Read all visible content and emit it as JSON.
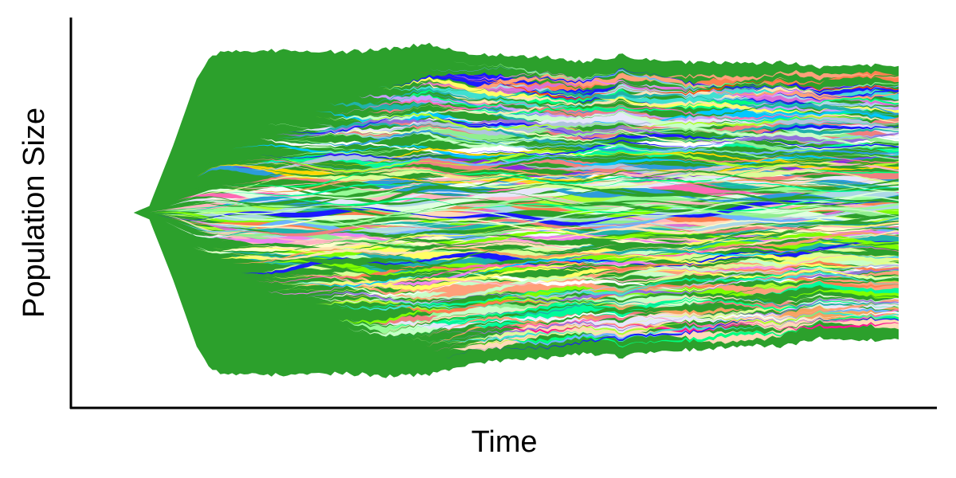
{
  "chart_data": {
    "type": "area",
    "subtype": "streamgraph (muller plot of lineage population sizes)",
    "title": "",
    "xlabel": "Time",
    "ylabel": "Population Size",
    "xlim": [
      0,
      100
    ],
    "ylim": [
      -1,
      1
    ],
    "grid": false,
    "legend": "none",
    "ticks": "none",
    "population_envelope": {
      "x": [
        0,
        3,
        5,
        8,
        11,
        13,
        15,
        20,
        30,
        35,
        40,
        45,
        50,
        55,
        60,
        65,
        70,
        75,
        80,
        85,
        90,
        95,
        100
      ],
      "half": [
        0.0,
        0.0,
        0.04,
        0.4,
        0.8,
        0.95,
        0.96,
        0.97,
        0.96,
        0.98,
        0.99,
        0.93,
        0.91,
        0.9,
        0.87,
        0.9,
        0.86,
        0.86,
        0.84,
        0.85,
        0.81,
        0.82,
        0.82
      ],
      "asym": [
        0.0,
        0.0,
        0.0,
        0.0,
        0.0,
        0.0,
        0.0,
        0.0,
        0.0,
        0.0,
        0.02,
        0.02,
        0.03,
        0.03,
        0.03,
        0.04,
        0.04,
        0.04,
        0.05,
        0.05,
        0.06,
        0.06,
        0.06
      ]
    },
    "lineages": {
      "count": 190,
      "base_color": "#2ca02c",
      "palette": [
        "#ff1493",
        "#daff99",
        "#ffffcc",
        "#6cb4ff",
        "#2d9cdb",
        "#1a1aff",
        "#00c8ff",
        "#c8a0ff",
        "#ff7f50",
        "#ff4500",
        "#ffd700",
        "#ffff66",
        "#adff2f",
        "#7fff00",
        "#00ff7f",
        "#98fb98",
        "#40e0d0",
        "#ee82ee",
        "#da70d6",
        "#f08080",
        "#ffa07a",
        "#ffb6c1",
        "#b0c4de",
        "#87cefa",
        "#f5fffa",
        "#ffffff",
        "#e0ffe0",
        "#ffe4b5",
        "#c8ffc8",
        "#00fa9a",
        "#ff69b4",
        "#9370db",
        "#8a2be2",
        "#20b2aa",
        "#f4a460",
        "#f0e68c",
        "#90ee90",
        "#add8e6",
        "#e6e6fa",
        "#ffdab9"
      ]
    }
  }
}
